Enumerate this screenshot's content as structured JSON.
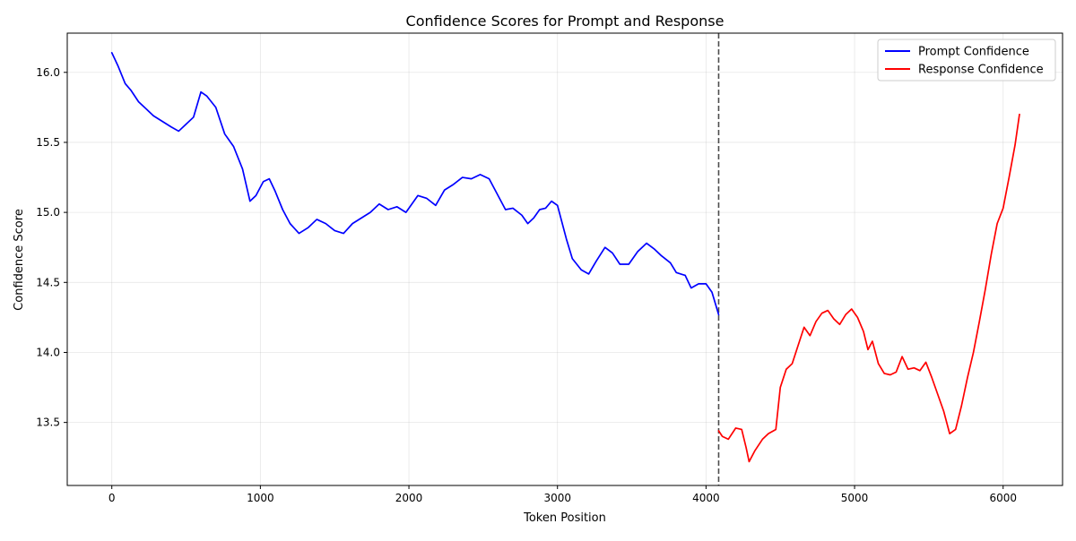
{
  "chart_data": {
    "type": "line",
    "title": "Confidence Scores for Prompt and Response",
    "xlabel": "Token Position",
    "ylabel": "Confidence Score",
    "xlim": [
      -300,
      6400
    ],
    "ylim": [
      13.05,
      16.28
    ],
    "x_ticks": [
      0,
      1000,
      2000,
      3000,
      4000,
      5000,
      6000
    ],
    "y_ticks": [
      13.5,
      14.0,
      14.5,
      15.0,
      15.5,
      16.0
    ],
    "x_tick_labels": [
      "0",
      "1000",
      "2000",
      "3000",
      "4000",
      "5000",
      "6000"
    ],
    "y_tick_labels": [
      "13.5",
      "14.0",
      "14.5",
      "15.0",
      "15.5",
      "16.0"
    ],
    "grid": true,
    "legend_position": "upper right",
    "divider_x": 4085,
    "series": [
      {
        "name": "Prompt Confidence",
        "color": "#0000ff",
        "points": [
          [
            0,
            16.14
          ],
          [
            40,
            16.05
          ],
          [
            90,
            15.92
          ],
          [
            130,
            15.87
          ],
          [
            180,
            15.79
          ],
          [
            230,
            15.74
          ],
          [
            280,
            15.69
          ],
          [
            340,
            15.65
          ],
          [
            400,
            15.61
          ],
          [
            450,
            15.58
          ],
          [
            500,
            15.63
          ],
          [
            550,
            15.68
          ],
          [
            600,
            15.86
          ],
          [
            640,
            15.83
          ],
          [
            700,
            15.75
          ],
          [
            760,
            15.56
          ],
          [
            820,
            15.47
          ],
          [
            880,
            15.31
          ],
          [
            930,
            15.08
          ],
          [
            970,
            15.12
          ],
          [
            1020,
            15.22
          ],
          [
            1060,
            15.24
          ],
          [
            1100,
            15.15
          ],
          [
            1150,
            15.02
          ],
          [
            1200,
            14.92
          ],
          [
            1260,
            14.85
          ],
          [
            1320,
            14.89
          ],
          [
            1380,
            14.95
          ],
          [
            1440,
            14.92
          ],
          [
            1500,
            14.87
          ],
          [
            1560,
            14.85
          ],
          [
            1620,
            14.92
          ],
          [
            1680,
            14.96
          ],
          [
            1740,
            15.0
          ],
          [
            1800,
            15.06
          ],
          [
            1860,
            15.02
          ],
          [
            1920,
            15.04
          ],
          [
            1980,
            15.0
          ],
          [
            2020,
            15.06
          ],
          [
            2060,
            15.12
          ],
          [
            2120,
            15.1
          ],
          [
            2180,
            15.05
          ],
          [
            2240,
            15.16
          ],
          [
            2300,
            15.2
          ],
          [
            2360,
            15.25
          ],
          [
            2420,
            15.24
          ],
          [
            2480,
            15.27
          ],
          [
            2540,
            15.24
          ],
          [
            2600,
            15.12
          ],
          [
            2650,
            15.02
          ],
          [
            2700,
            15.03
          ],
          [
            2760,
            14.98
          ],
          [
            2800,
            14.92
          ],
          [
            2840,
            14.96
          ],
          [
            2880,
            15.02
          ],
          [
            2920,
            15.03
          ],
          [
            2960,
            15.08
          ],
          [
            3000,
            15.05
          ],
          [
            3060,
            14.81
          ],
          [
            3100,
            14.67
          ],
          [
            3160,
            14.59
          ],
          [
            3210,
            14.56
          ],
          [
            3260,
            14.65
          ],
          [
            3320,
            14.75
          ],
          [
            3370,
            14.71
          ],
          [
            3420,
            14.63
          ],
          [
            3480,
            14.63
          ],
          [
            3540,
            14.72
          ],
          [
            3600,
            14.78
          ],
          [
            3650,
            14.74
          ],
          [
            3700,
            14.69
          ],
          [
            3760,
            14.64
          ],
          [
            3800,
            14.57
          ],
          [
            3860,
            14.55
          ],
          [
            3900,
            14.46
          ],
          [
            3950,
            14.49
          ],
          [
            4000,
            14.49
          ],
          [
            4040,
            14.43
          ],
          [
            4085,
            14.27
          ]
        ]
      },
      {
        "name": "Response Confidence",
        "color": "#ff0000",
        "points": [
          [
            4085,
            13.44
          ],
          [
            4110,
            13.4
          ],
          [
            4150,
            13.38
          ],
          [
            4200,
            13.46
          ],
          [
            4240,
            13.45
          ],
          [
            4270,
            13.32
          ],
          [
            4290,
            13.22
          ],
          [
            4330,
            13.3
          ],
          [
            4380,
            13.38
          ],
          [
            4420,
            13.42
          ],
          [
            4470,
            13.45
          ],
          [
            4500,
            13.75
          ],
          [
            4540,
            13.88
          ],
          [
            4580,
            13.92
          ],
          [
            4620,
            14.05
          ],
          [
            4660,
            14.18
          ],
          [
            4700,
            14.12
          ],
          [
            4740,
            14.22
          ],
          [
            4780,
            14.28
          ],
          [
            4820,
            14.3
          ],
          [
            4860,
            14.24
          ],
          [
            4900,
            14.2
          ],
          [
            4940,
            14.27
          ],
          [
            4980,
            14.31
          ],
          [
            5020,
            14.25
          ],
          [
            5060,
            14.15
          ],
          [
            5090,
            14.02
          ],
          [
            5120,
            14.08
          ],
          [
            5160,
            13.92
          ],
          [
            5200,
            13.85
          ],
          [
            5240,
            13.84
          ],
          [
            5280,
            13.86
          ],
          [
            5320,
            13.97
          ],
          [
            5360,
            13.88
          ],
          [
            5400,
            13.89
          ],
          [
            5440,
            13.87
          ],
          [
            5480,
            13.93
          ],
          [
            5520,
            13.82
          ],
          [
            5560,
            13.7
          ],
          [
            5600,
            13.58
          ],
          [
            5640,
            13.42
          ],
          [
            5680,
            13.45
          ],
          [
            5720,
            13.62
          ],
          [
            5760,
            13.82
          ],
          [
            5800,
            14.0
          ],
          [
            5840,
            14.22
          ],
          [
            5880,
            14.45
          ],
          [
            5920,
            14.7
          ],
          [
            5960,
            14.92
          ],
          [
            6000,
            15.03
          ],
          [
            6040,
            15.25
          ],
          [
            6080,
            15.48
          ],
          [
            6110,
            15.7
          ]
        ]
      }
    ]
  }
}
